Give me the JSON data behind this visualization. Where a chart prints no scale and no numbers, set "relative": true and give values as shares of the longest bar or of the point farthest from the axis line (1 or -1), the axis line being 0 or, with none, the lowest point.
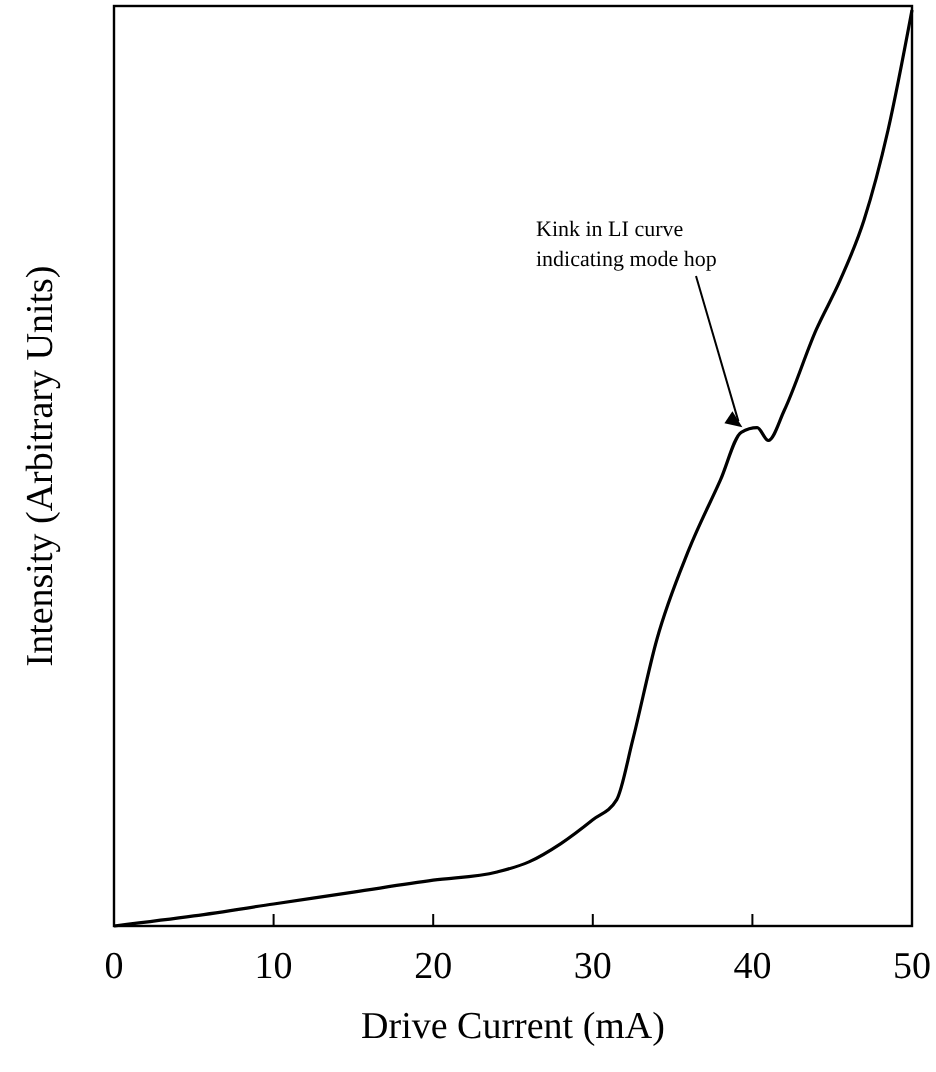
{
  "chart_data": {
    "type": "line",
    "relative": true,
    "xlabel": "Drive Current (mA)",
    "ylabel": "Intensity (Arbitrary Units)",
    "xlim": [
      0,
      50
    ],
    "xticks": [
      0,
      10,
      20,
      30,
      40,
      50
    ],
    "x": [
      0,
      5,
      10,
      15,
      20,
      24,
      26,
      28,
      30,
      31.5,
      32.5,
      34,
      36,
      38,
      39.3,
      40.3,
      41,
      42,
      44,
      45.5,
      47,
      48.5,
      50
    ],
    "series": [
      {
        "color": "#000000",
        "values": [
          0,
          0.011,
          0.024,
          0.037,
          0.05,
          0.059,
          0.07,
          0.09,
          0.116,
          0.138,
          0.203,
          0.312,
          0.41,
          0.487,
          0.539,
          0.544,
          0.53,
          0.563,
          0.651,
          0.705,
          0.771,
          0.869,
          1
        ]
      }
    ],
    "annotations": [
      {
        "text": "Kink in LI curve\nindicating mode hop",
        "x": 39.5,
        "y": 0.54
      }
    ]
  }
}
